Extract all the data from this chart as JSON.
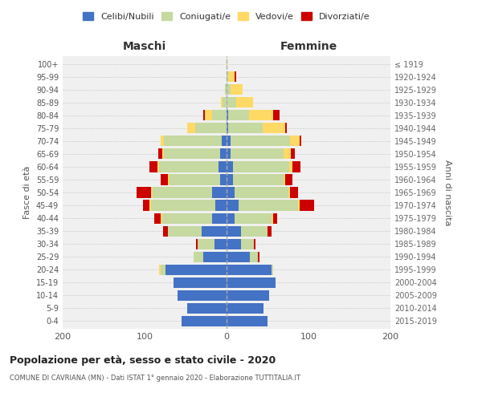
{
  "age_groups": [
    "0-4",
    "5-9",
    "10-14",
    "15-19",
    "20-24",
    "25-29",
    "30-34",
    "35-39",
    "40-44",
    "45-49",
    "50-54",
    "55-59",
    "60-64",
    "65-69",
    "70-74",
    "75-79",
    "80-84",
    "85-89",
    "90-94",
    "95-99",
    "100+"
  ],
  "birth_years": [
    "2015-2019",
    "2010-2014",
    "2005-2009",
    "2000-2004",
    "1995-1999",
    "1990-1994",
    "1985-1989",
    "1980-1984",
    "1975-1979",
    "1970-1974",
    "1965-1969",
    "1960-1964",
    "1955-1959",
    "1950-1954",
    "1945-1949",
    "1940-1944",
    "1935-1939",
    "1930-1934",
    "1925-1929",
    "1920-1924",
    "≤ 1919"
  ],
  "maschi": {
    "celibi": [
      55,
      48,
      60,
      65,
      75,
      28,
      15,
      30,
      18,
      14,
      18,
      8,
      10,
      8,
      6,
      0,
      0,
      0,
      0,
      0,
      0
    ],
    "coniugati": [
      0,
      0,
      0,
      0,
      5,
      12,
      20,
      42,
      60,
      78,
      72,
      62,
      72,
      68,
      70,
      38,
      18,
      5,
      2,
      0,
      0
    ],
    "vedovi": [
      0,
      0,
      0,
      0,
      2,
      0,
      0,
      0,
      2,
      2,
      2,
      2,
      2,
      2,
      4,
      10,
      8,
      2,
      0,
      0,
      0
    ],
    "divorziati": [
      0,
      0,
      0,
      0,
      0,
      0,
      2,
      5,
      8,
      8,
      18,
      8,
      10,
      5,
      0,
      0,
      2,
      0,
      0,
      0,
      0
    ]
  },
  "femmine": {
    "nubili": [
      50,
      45,
      52,
      60,
      55,
      28,
      18,
      18,
      10,
      15,
      10,
      8,
      8,
      5,
      5,
      2,
      2,
      0,
      0,
      0,
      0
    ],
    "coniugate": [
      0,
      0,
      0,
      0,
      2,
      10,
      15,
      32,
      45,
      72,
      65,
      62,
      68,
      65,
      72,
      42,
      25,
      12,
      5,
      2,
      0
    ],
    "vedove": [
      0,
      0,
      0,
      0,
      0,
      0,
      0,
      0,
      2,
      2,
      2,
      2,
      4,
      8,
      12,
      28,
      30,
      20,
      15,
      8,
      1
    ],
    "divorziate": [
      0,
      0,
      0,
      0,
      0,
      2,
      2,
      5,
      5,
      18,
      10,
      8,
      10,
      5,
      2,
      2,
      8,
      0,
      0,
      2,
      0
    ]
  },
  "colors": {
    "celibi_nubili": "#4472c4",
    "coniugati": "#c5d9a0",
    "vedovi": "#ffd966",
    "divorziati": "#cc0000"
  },
  "title": "Popolazione per età, sesso e stato civile - 2020",
  "subtitle": "COMUNE DI CAVRIANA (MN) - Dati ISTAT 1° gennaio 2020 - Elaborazione TUTTITALIA.IT",
  "xlabel_left": "Maschi",
  "xlabel_right": "Femmine",
  "ylabel_left": "Fasce di età",
  "ylabel_right": "Anni di nascita",
  "xlim": 200,
  "bg_color": "#f0f0f0",
  "grid_color": "#cccccc",
  "legend_labels": [
    "Celibi/Nubili",
    "Coniugati/e",
    "Vedovi/e",
    "Divorziati/e"
  ]
}
